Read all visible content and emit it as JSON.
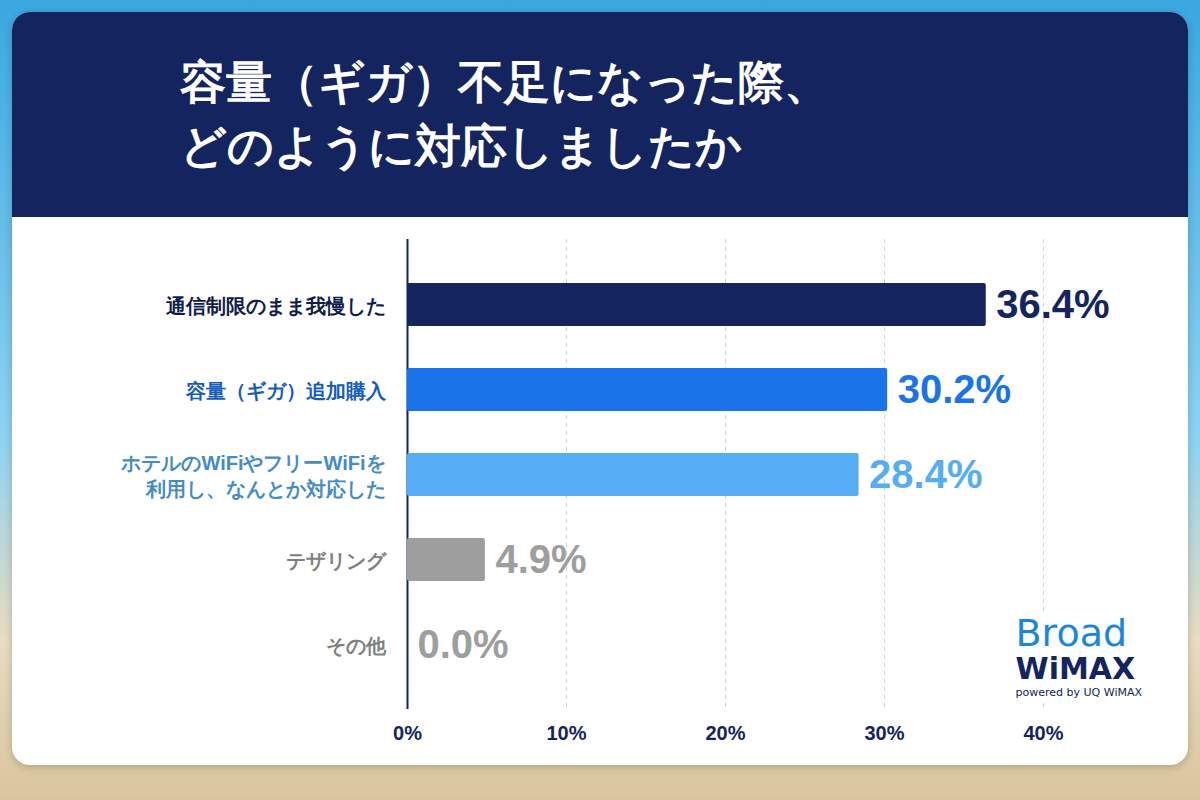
{
  "chart_data": {
    "type": "bar",
    "orientation": "horizontal",
    "title": "容量（ギガ）不足になった際、どのように対応しましたか",
    "categories": [
      "通信制限のまま我慢した",
      "容量（ギガ）追加購入",
      "ホテルのWiFiやフリーWiFiを利用し、なんとか対応した",
      "テザリング",
      "その他"
    ],
    "values": [
      36.4,
      30.2,
      28.4,
      4.9,
      0.0
    ],
    "value_labels": [
      "36.4%",
      "30.2%",
      "28.4%",
      "4.9%",
      "0.0%"
    ],
    "data_labels": true,
    "colors": [
      "#13245e",
      "#1a73e8",
      "#55aef5",
      "#9e9e9e",
      "#9e9e9e"
    ],
    "xlim": [
      0,
      40
    ],
    "xticks": [
      {
        "value": 0,
        "label": "0%"
      },
      {
        "value": 10,
        "label": "10%"
      },
      {
        "value": 20,
        "label": "20%"
      },
      {
        "value": 30,
        "label": "30%"
      },
      {
        "value": 40,
        "label": "40%"
      }
    ],
    "grid": true,
    "annotations": [
      "Broad WiMAX",
      "powered by UQ WiMAX"
    ]
  }
}
